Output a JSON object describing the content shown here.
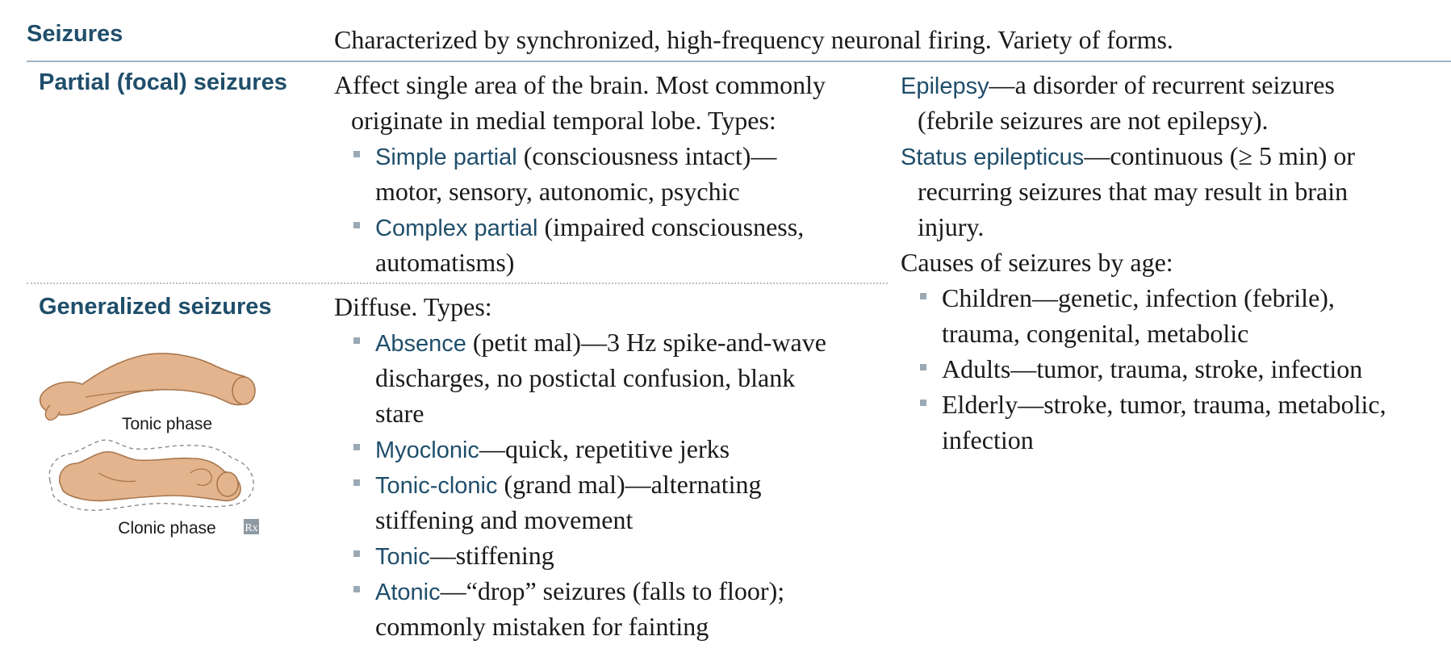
{
  "header": {
    "title": "Seizures",
    "description": "Characterized by synchronized, high-frequency neuronal firing. Variety of forms."
  },
  "partial": {
    "heading": "Partial (focal) seizures",
    "intro_line1": "Affect single area of the brain. Most commonly",
    "intro_line2": "originate in medial temporal lobe. Types:",
    "types": [
      {
        "term": "Simple partial",
        "rest_line1": " (consciousness intact)—",
        "line2": "motor, sensory, autonomic, psychic"
      },
      {
        "term": "Complex partial",
        "rest_line1": " (impaired consciousness,",
        "line2": "automatisms)"
      }
    ]
  },
  "generalized": {
    "heading": "Generalized seizures",
    "intro": "Diffuse. Types:",
    "types": [
      {
        "term": "Absence",
        "rest_line1": " (petit mal)—3 Hz spike-and-wave",
        "line2": "discharges, no postictal confusion, blank",
        "line3": "stare"
      },
      {
        "term": "Myoclonic",
        "rest_line1": "—quick, repetitive jerks"
      },
      {
        "term": "Tonic-clonic",
        "rest_line1": " (grand mal)—alternating",
        "line2": "stiffening and movement"
      },
      {
        "term": "Tonic",
        "rest_line1": "—stiffening"
      },
      {
        "term": "Atonic",
        "rest_line1": "—“drop” seizures (falls to floor);",
        "line2": "commonly mistaken for fainting"
      }
    ],
    "figure": {
      "tonic_caption": "Tonic phase",
      "clonic_caption": "Clonic phase",
      "rx_mark": "Rx"
    }
  },
  "right": {
    "epilepsy_term": "Epilepsy",
    "epilepsy_rest": "—a disorder of recurrent seizures",
    "epilepsy_line2": "(febrile seizures are not epilepsy).",
    "status_term": "Status epilepticus",
    "status_rest": "—continuous (≥ 5 min) or",
    "status_line2": "recurring seizures that may result in brain",
    "status_line3": "injury.",
    "causes_heading": "Causes of seizures by age:",
    "causes": [
      {
        "line1": "Children—genetic, infection (febrile),",
        "line2": "trauma, congenital, metabolic"
      },
      {
        "line1": "Adults—tumor, trauma, stroke, infection"
      },
      {
        "line1": "Elderly—stroke, tumor, trauma, metabolic,",
        "line2": "infection"
      }
    ]
  },
  "colors": {
    "heading": "#1f4e6b",
    "bullet": "#9aa9b4",
    "rule": "#9fb3c2",
    "figure_fill": "#e3b48d",
    "figure_stroke": "#a8764d"
  }
}
